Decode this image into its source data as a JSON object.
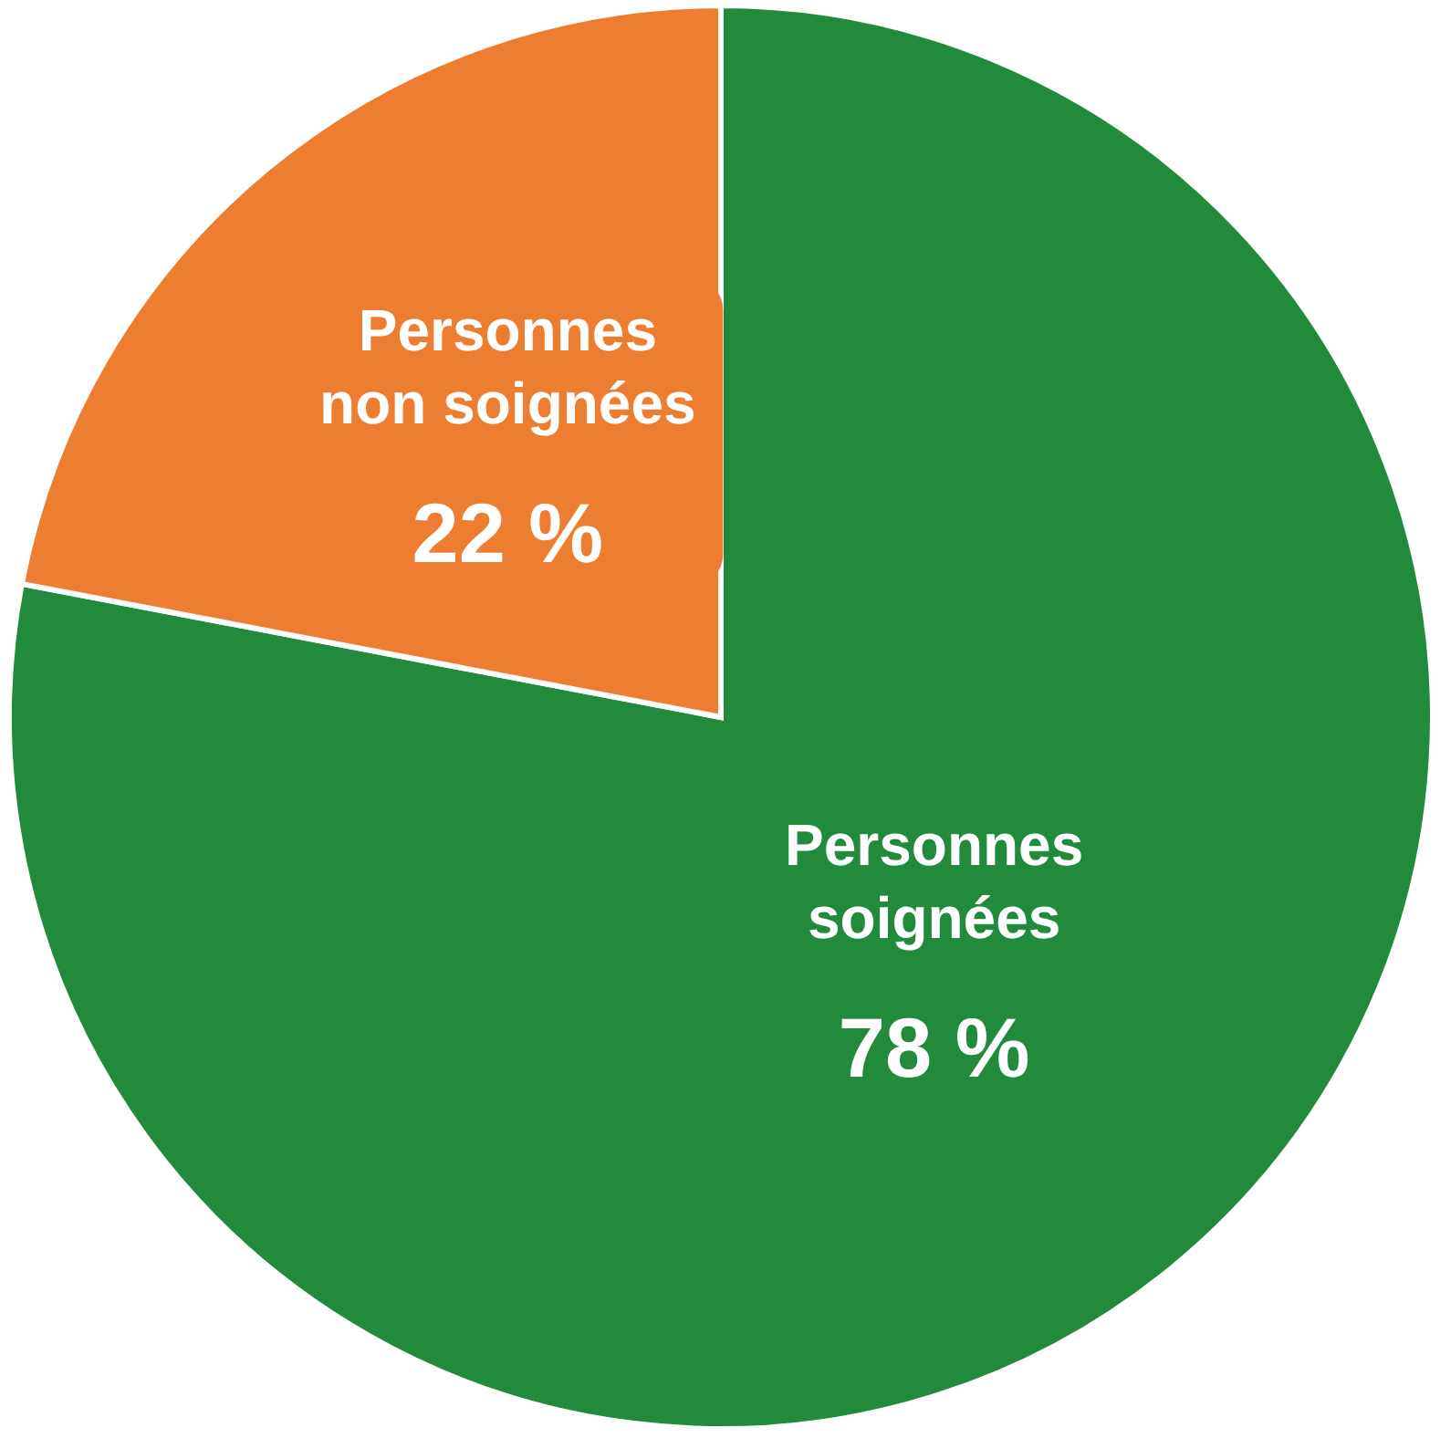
{
  "chart_data": {
    "type": "pie",
    "categories": [
      "Personnes soignées",
      "Personnes non soignées"
    ],
    "values": [
      78,
      22
    ],
    "colors": [
      "#228b3b",
      "#ed7d31"
    ],
    "value_labels": [
      "78 %",
      "22 %"
    ]
  }
}
